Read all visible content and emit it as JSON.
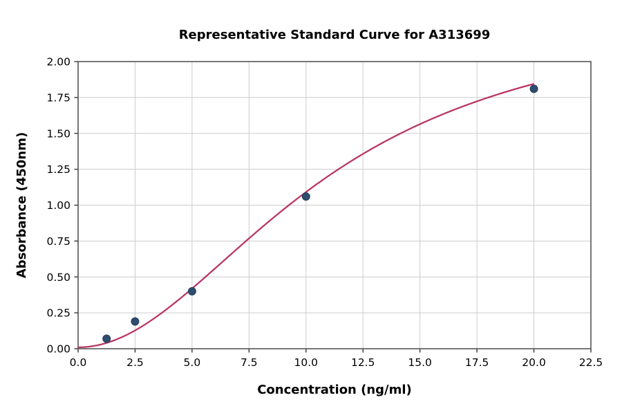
{
  "chart_data": {
    "type": "scatter",
    "title": "Representative Standard Curve for A313699",
    "xlabel": "Concentration (ng/ml)",
    "ylabel": "Absorbance (450nm)",
    "xlim": [
      0,
      22.5
    ],
    "ylim": [
      0,
      2.0
    ],
    "grid": true,
    "legend": "none",
    "xticks": [
      0.0,
      2.5,
      5.0,
      7.5,
      10.0,
      12.5,
      15.0,
      17.5,
      20.0,
      22.5
    ],
    "xtick_labels": [
      "0.0",
      "2.5",
      "5.0",
      "7.5",
      "10.0",
      "12.5",
      "15.0",
      "17.5",
      "20.0",
      "22.5"
    ],
    "yticks": [
      0.0,
      0.25,
      0.5,
      0.75,
      1.0,
      1.25,
      1.5,
      1.75,
      2.0
    ],
    "ytick_labels": [
      "0.00",
      "0.25",
      "0.50",
      "0.75",
      "1.00",
      "1.25",
      "1.50",
      "1.75",
      "2.00"
    ],
    "points": {
      "x": [
        1.25,
        2.5,
        5.0,
        10.0,
        20.0
      ],
      "y": [
        0.07,
        0.19,
        0.4,
        1.06,
        1.81
      ]
    },
    "fit_curve": {
      "model": "4PL",
      "min_asymptote": 0.01,
      "max_asymptote": 2.4,
      "ec50": 11.0,
      "hill_slope": 2.0,
      "x_range": [
        0,
        20
      ]
    },
    "colors": {
      "curve": "#b83765",
      "points": "#2e4d6f",
      "point_edge": "#23405c",
      "grid": "#cccccc",
      "spine": "#555555",
      "tick": "#222222",
      "text": "#000000",
      "background": "#ffffff"
    }
  }
}
